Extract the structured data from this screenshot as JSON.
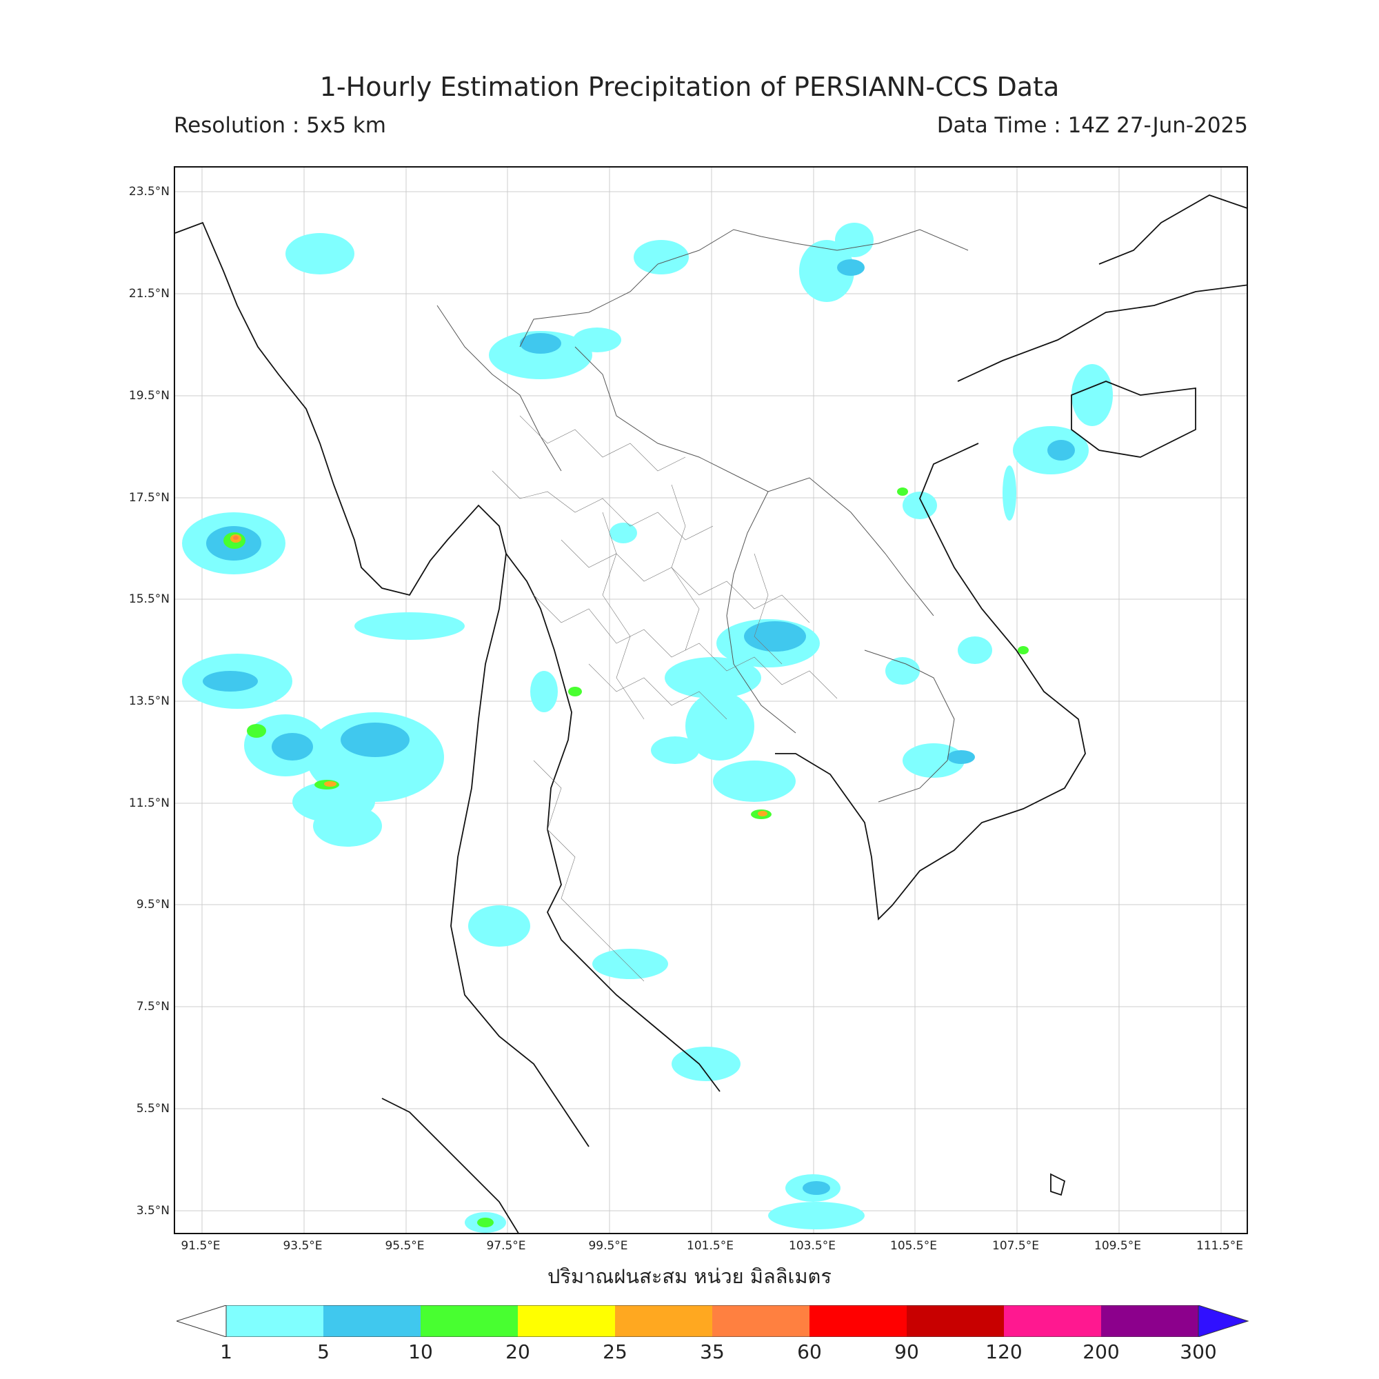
{
  "title": "1-Hourly Estimation Precipitation of PERSIANN-CCS Data",
  "resolution": "Resolution : 5x5 km",
  "data_time": "Data Time : 14Z 27-Jun-2025",
  "axis_title": "ปริมาณฝนสะสม หน่วย มิลลิเมตร",
  "lat_labels": [
    "23.5°N",
    "21.5°N",
    "19.5°N",
    "17.5°N",
    "15.5°N",
    "13.5°N",
    "11.5°N",
    "9.5°N",
    "7.5°N",
    "5.5°N",
    "3.5°N"
  ],
  "lon_labels": [
    "91.5°E",
    "93.5°E",
    "95.5°E",
    "97.5°E",
    "99.5°E",
    "101.5°E",
    "103.5°E",
    "105.5°E",
    "107.5°E",
    "109.5°E",
    "111.5°E"
  ],
  "colorbar": {
    "labels": [
      "1",
      "5",
      "10",
      "20",
      "25",
      "35",
      "60",
      "90",
      "120",
      "200",
      "300"
    ],
    "colors": [
      "#80ffff",
      "#40c8ee",
      "#48ff30",
      "#ffff00",
      "#ffa820",
      "#ff8040",
      "#ff0000",
      "#c80000",
      "#ff1890",
      "#8c008c"
    ],
    "over_color": "#3010ff",
    "under_color": "#ffffff"
  }
}
